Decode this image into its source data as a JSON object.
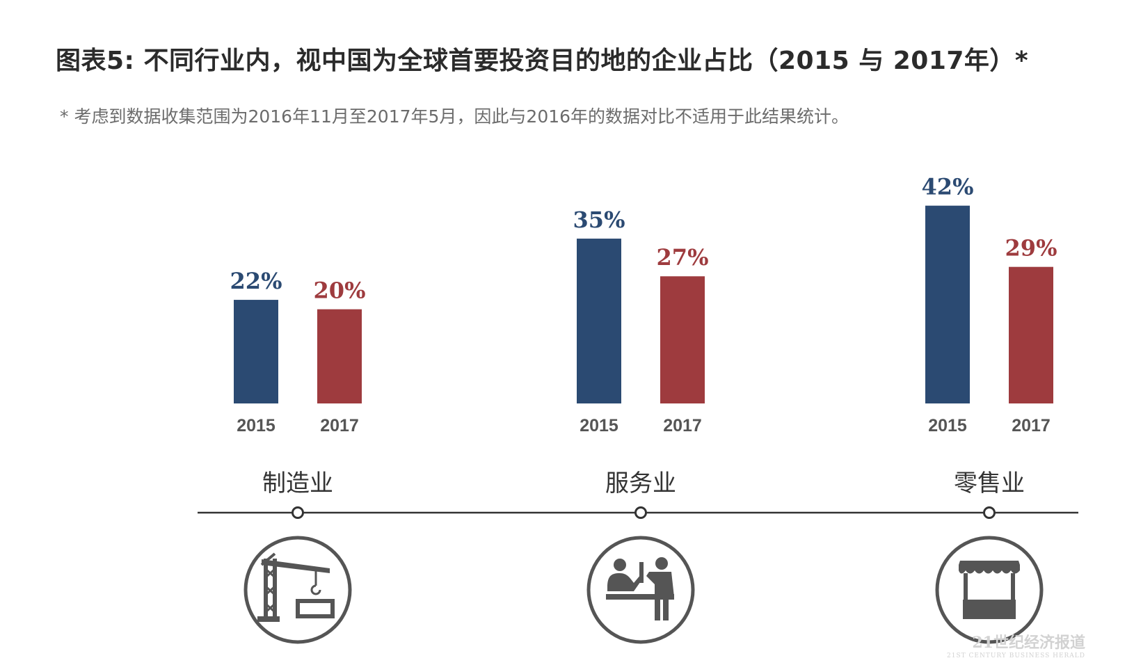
{
  "header": {
    "title": "图表5: 不同行业内，视中国为全球首要投资目的地的企业占比（2015 与 2017年）*",
    "subtitle": "* 考虑到数据收集范围为2016年11月至2017年5月，因此与2016年的数据对比不适用于此结果统计。"
  },
  "watermark": {
    "main": "21世纪经济报道",
    "sub": "21ST CENTURY BUSINESS HERALD"
  },
  "colors": {
    "series_2015": "#2b4a72",
    "series_2017": "#9e3b3e",
    "axis": "#333333",
    "icon": "#555555"
  },
  "chart_data": {
    "type": "bar",
    "title": "图表5: 不同行业内，视中国为全球首要投资目的地的企业占比（2015 与 2017年）*",
    "categories": [
      "制造业",
      "服务业",
      "零售业"
    ],
    "category_icons": [
      "crane-icon",
      "service-desk-icon",
      "store-awning-icon"
    ],
    "series": [
      {
        "name": "2015",
        "values": [
          22,
          35,
          42
        ],
        "labels": [
          "22%",
          "35%",
          "42%"
        ]
      },
      {
        "name": "2017",
        "values": [
          20,
          27,
          29
        ],
        "labels": [
          "20%",
          "27%",
          "29%"
        ]
      }
    ],
    "unit": "%",
    "ylim": [
      0,
      50
    ],
    "xlabel": "",
    "ylabel": "",
    "grid": false,
    "legend": "none"
  }
}
